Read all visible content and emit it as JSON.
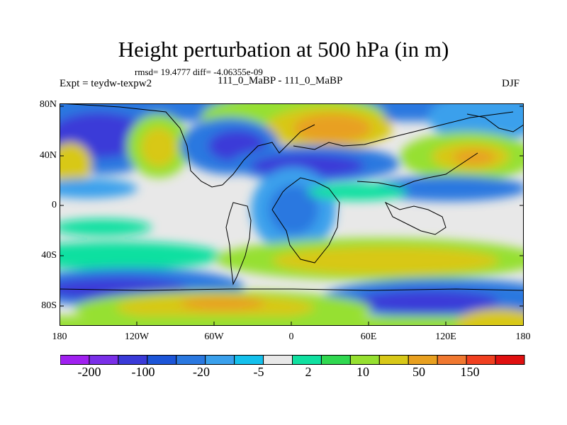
{
  "title": "Height perturbation at 500 hPa (in m)",
  "stats_line": "rmsd= 19.4777 diff= -4.06355e-09",
  "left_label": "Expt = teydw-texpw2",
  "center_label": "111_0_MaBP - 111_0_MaBP",
  "right_label": "DJF",
  "lat_labels": [
    "80N",
    "40N",
    "0",
    "40S",
    "80S"
  ],
  "lon_labels": [
    "180",
    "120W",
    "60W",
    "0",
    "60E",
    "120E",
    "180"
  ],
  "colorbar": {
    "colors": [
      "#a020f0",
      "#7a2fe8",
      "#3a3ad8",
      "#1c55d8",
      "#2a78e0",
      "#3aa0ec",
      "#14c0ec",
      "#e8e8e8",
      "#10e0a0",
      "#30d850",
      "#96e030",
      "#d8c818",
      "#e8a020",
      "#f07830",
      "#f04020",
      "#e01010"
    ],
    "labels": [
      "-200",
      "-100",
      "-20",
      "-5",
      "2",
      "10",
      "50",
      "150"
    ]
  },
  "colors": {
    "background": "#e8e8e8",
    "coastline": "#000000"
  }
}
